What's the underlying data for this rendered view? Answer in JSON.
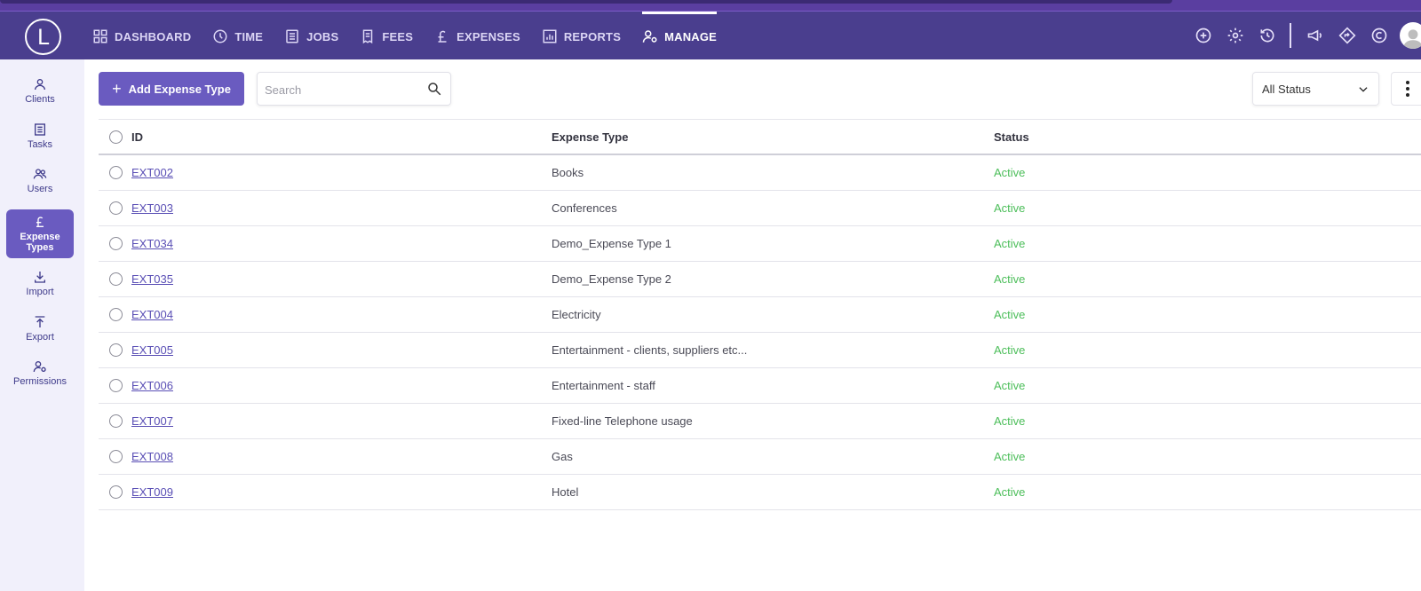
{
  "app": {
    "logo_letter": "L"
  },
  "nav": [
    {
      "label": "DASHBOARD",
      "icon": "grid-icon"
    },
    {
      "label": "TIME",
      "icon": "clock-icon"
    },
    {
      "label": "JOBS",
      "icon": "list-icon"
    },
    {
      "label": "FEES",
      "icon": "receipt-icon"
    },
    {
      "label": "EXPENSES",
      "icon": "pound-icon"
    },
    {
      "label": "REPORTS",
      "icon": "bar-chart-icon"
    },
    {
      "label": "MANAGE",
      "icon": "user-gear-icon",
      "active": true
    }
  ],
  "top_icons": [
    "add-circle-icon",
    "gear-icon",
    "history-icon",
    "megaphone-icon",
    "diamond-arrow-icon",
    "copyright-icon",
    "avatar"
  ],
  "sidebar": {
    "items": [
      {
        "label": "Clients",
        "icon": "person-icon"
      },
      {
        "label": "Tasks",
        "icon": "task-list-icon"
      },
      {
        "label": "Users",
        "icon": "users-icon"
      },
      {
        "label": "Expense Types",
        "icon": "pound-icon",
        "active": true
      },
      {
        "label": "Import",
        "icon": "import-icon"
      },
      {
        "label": "Export",
        "icon": "export-icon"
      },
      {
        "label": "Permissions",
        "icon": "user-gear-icon"
      }
    ]
  },
  "toolbar": {
    "add_label": "Add Expense Type",
    "search_placeholder": "Search",
    "status_filter": "All Status"
  },
  "table": {
    "headers": {
      "id": "ID",
      "type": "Expense Type",
      "status": "Status"
    },
    "rows": [
      {
        "id": "EXT002",
        "type": "Books",
        "status": "Active"
      },
      {
        "id": "EXT003",
        "type": "Conferences",
        "status": "Active"
      },
      {
        "id": "EXT034",
        "type": "Demo_Expense Type 1",
        "status": "Active"
      },
      {
        "id": "EXT035",
        "type": "Demo_Expense Type 2",
        "status": "Active"
      },
      {
        "id": "EXT004",
        "type": "Electricity",
        "status": "Active"
      },
      {
        "id": "EXT005",
        "type": "Entertainment - clients, suppliers etc...",
        "status": "Active"
      },
      {
        "id": "EXT006",
        "type": "Entertainment - staff",
        "status": "Active"
      },
      {
        "id": "EXT007",
        "type": "Fixed-line Telephone usage",
        "status": "Active"
      },
      {
        "id": "EXT008",
        "type": "Gas",
        "status": "Active"
      },
      {
        "id": "EXT009",
        "type": "Hotel",
        "status": "Active"
      }
    ]
  },
  "colors": {
    "topbar": "#4a3e8e",
    "accent": "#6a5bc0",
    "status_active": "#4cbe5a",
    "link": "#5a4fb5"
  }
}
